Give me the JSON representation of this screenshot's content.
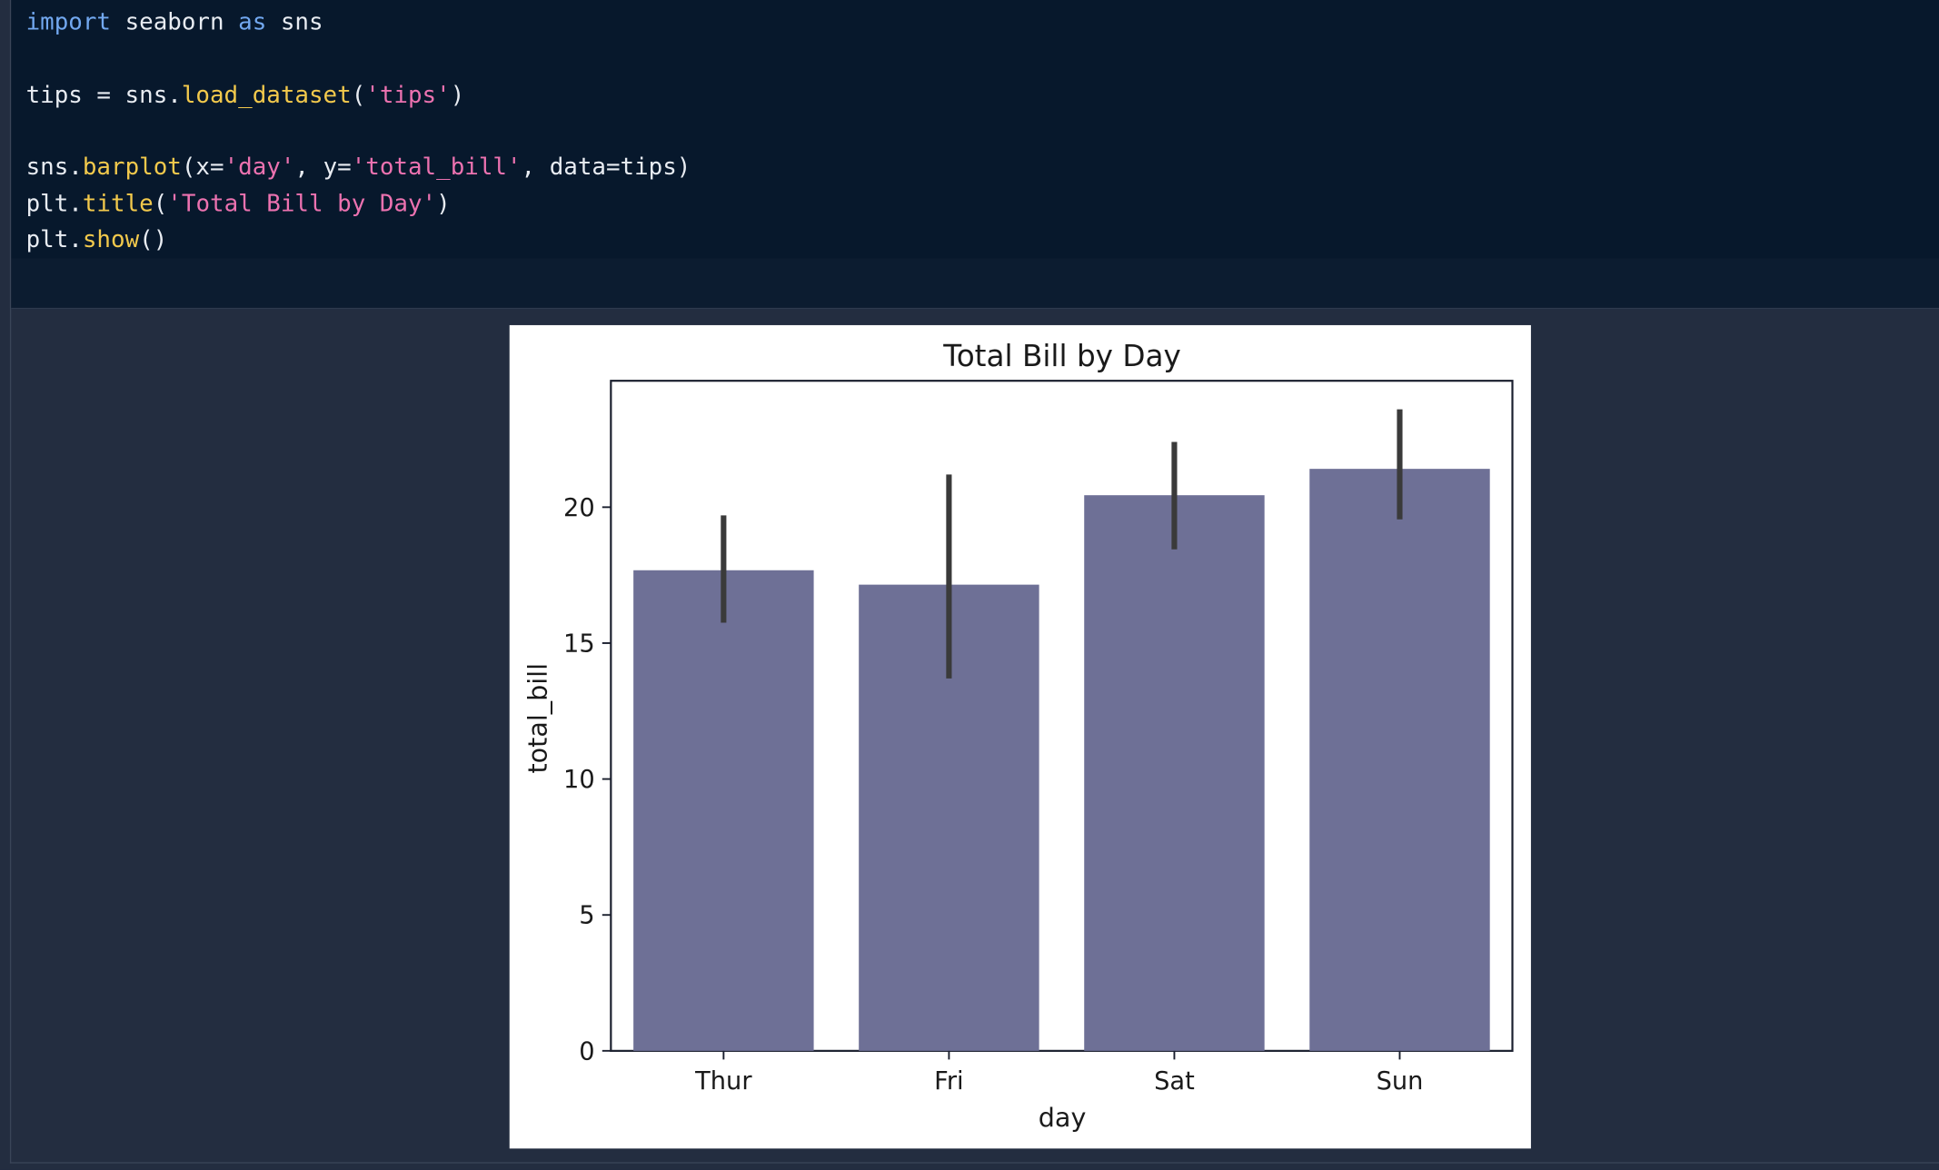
{
  "code": {
    "lines": [
      [
        {
          "t": "import",
          "c": "kw"
        },
        {
          "t": " seaborn ",
          "c": ""
        },
        {
          "t": "as",
          "c": "kw"
        },
        {
          "t": " sns",
          "c": ""
        }
      ],
      [],
      [
        {
          "t": "tips = sns.",
          "c": ""
        },
        {
          "t": "load_dataset",
          "c": "fn"
        },
        {
          "t": "(",
          "c": ""
        },
        {
          "t": "'tips'",
          "c": "str"
        },
        {
          "t": ")",
          "c": ""
        }
      ],
      [],
      [
        {
          "t": "sns.",
          "c": ""
        },
        {
          "t": "barplot",
          "c": "fn"
        },
        {
          "t": "(x=",
          "c": ""
        },
        {
          "t": "'day'",
          "c": "str"
        },
        {
          "t": ", y=",
          "c": ""
        },
        {
          "t": "'total_bill'",
          "c": "str"
        },
        {
          "t": ", data=tips)",
          "c": ""
        }
      ],
      [
        {
          "t": "plt.",
          "c": ""
        },
        {
          "t": "title",
          "c": "fn"
        },
        {
          "t": "(",
          "c": ""
        },
        {
          "t": "'Total Bill by Day'",
          "c": "str"
        },
        {
          "t": ")",
          "c": ""
        }
      ],
      [
        {
          "t": "plt.",
          "c": ""
        },
        {
          "t": "show",
          "c": "fn"
        },
        {
          "t": "()",
          "c": ""
        }
      ]
    ]
  },
  "chart_data": {
    "type": "bar",
    "title": "Total Bill by Day",
    "xlabel": "day",
    "ylabel": "total_bill",
    "categories": [
      "Thur",
      "Fri",
      "Sat",
      "Sun"
    ],
    "values": [
      17.68,
      17.15,
      20.44,
      21.41
    ],
    "error_low": [
      15.75,
      13.7,
      18.45,
      19.55
    ],
    "error_high": [
      19.7,
      21.2,
      22.4,
      23.6
    ],
    "ylim": [
      0,
      24.65
    ],
    "yticks": [
      0,
      5,
      10,
      15,
      20
    ],
    "bar_color": "#6e7096",
    "errorbar_color": "#3a3a3a",
    "grid": false
  }
}
